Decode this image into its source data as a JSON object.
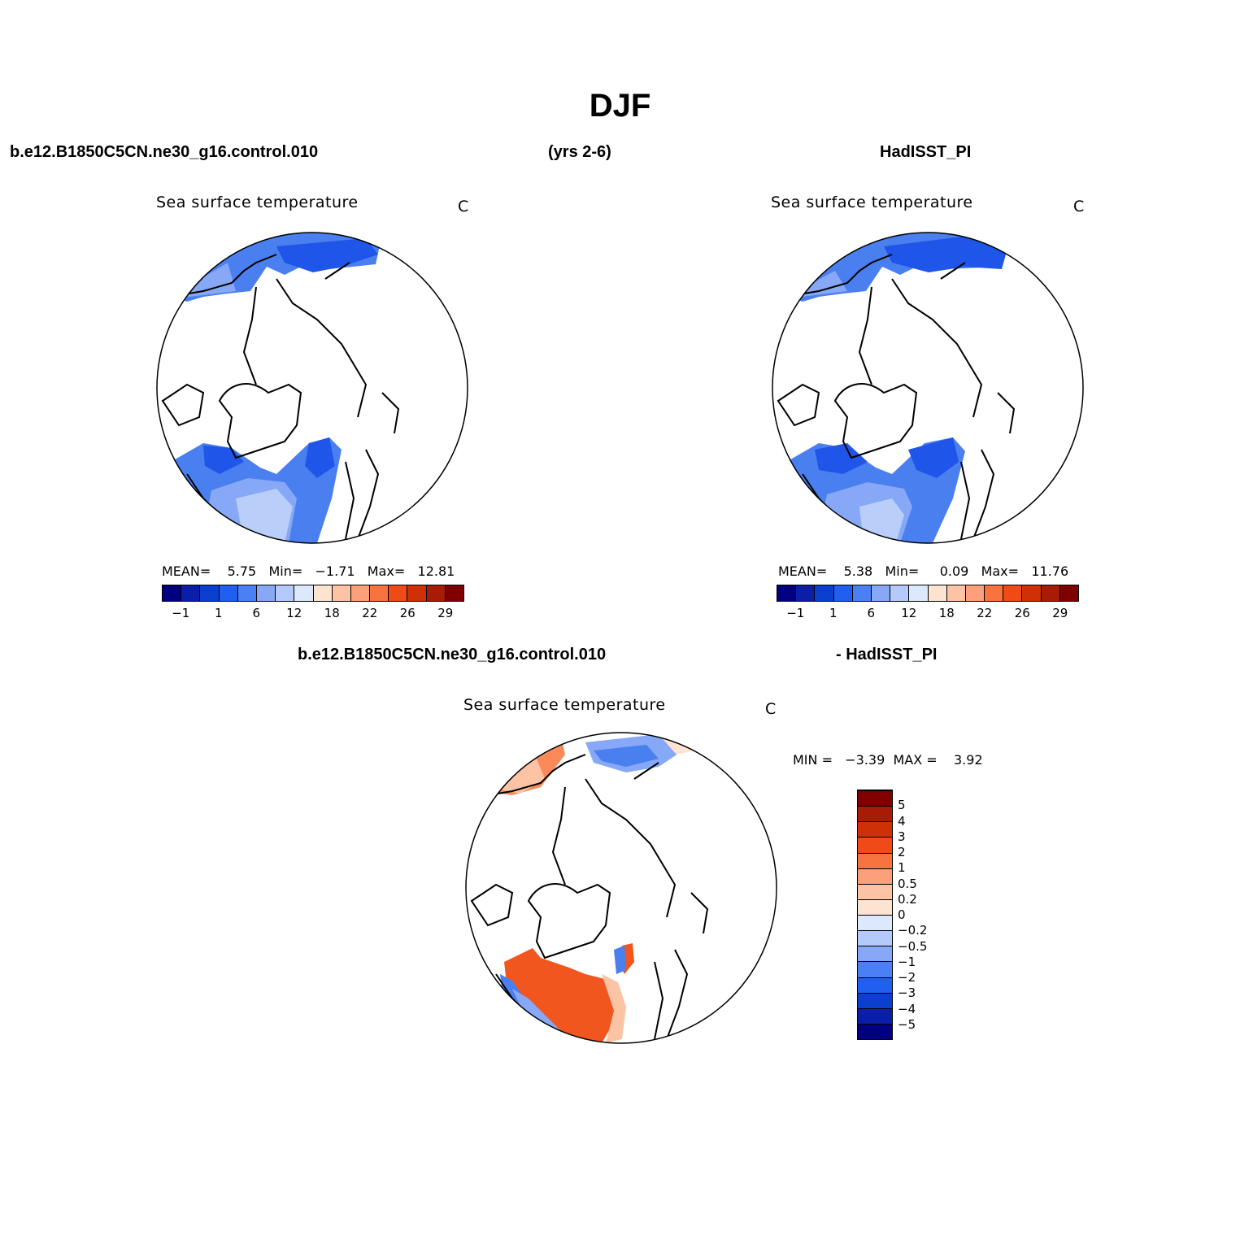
{
  "title": "DJF",
  "header": {
    "case_left": "b.e12.B1850C5CN.ne30_g16.control.010",
    "years": "(yrs 2-6)",
    "case_right": "HadISST_PI",
    "diff_left": "b.e12.B1850C5CN.ne30_g16.control.010",
    "diff_right": "- HadISST_PI"
  },
  "panels": [
    {
      "name": "Sea surface temperature",
      "unit": "C",
      "stats_text": "MEAN=    5.75   Min=   −1.71   Max=   12.81",
      "stats": {
        "mean": 5.75,
        "min": -1.71,
        "max": 12.81
      }
    },
    {
      "name": "Sea surface temperature",
      "unit": "C",
      "stats_text": "MEAN=    5.38   Min=     0.09   Max=   11.76",
      "stats": {
        "mean": 5.38,
        "min": 0.09,
        "max": 11.76
      }
    },
    {
      "name": "Sea surface temperature",
      "unit": "C",
      "stats_text": "MIN =   −3.39  MAX =    3.92",
      "stats": {
        "min": -3.39,
        "max": 3.92
      }
    }
  ],
  "colorbar_abs": {
    "colors": [
      "#000080",
      "#0a1ea8",
      "#0b3fd0",
      "#2060f0",
      "#4b80f5",
      "#87a8f7",
      "#b4cafa",
      "#dce8fb",
      "#fde3d2",
      "#fcc4a4",
      "#fba07a",
      "#f77340",
      "#ef4a17",
      "#d03005",
      "#a81c05",
      "#800000"
    ],
    "labels": [
      "−1",
      "1",
      "6",
      "12",
      "18",
      "22",
      "26",
      "29"
    ]
  },
  "colorbar_diff": {
    "colors": [
      "#000080",
      "#0a1ea8",
      "#0b3fd0",
      "#2060f0",
      "#4b80f5",
      "#87a8f7",
      "#b4cafa",
      "#dce8fb",
      "#fde3d2",
      "#fcc4a4",
      "#fba07a",
      "#f77340",
      "#ef4a17",
      "#d03005",
      "#a81c05",
      "#800000"
    ],
    "labels": [
      "−5",
      "−4",
      "−3",
      "−2",
      "−1",
      "−0.5",
      "−0.2",
      "0",
      "0.2",
      "0.5",
      "1",
      "2",
      "3",
      "4",
      "5"
    ]
  },
  "map_colors": {
    "ocean_deep_blue": "#1f55e8",
    "ocean_mid_blue": "#4a7ff0",
    "ocean_light_blue": "#87a8f7",
    "ocean_pale_blue": "#b9cff9",
    "diff_red": "#f0561e",
    "diff_orange": "#fa8a5a",
    "diff_peach": "#fcc4a4"
  }
}
